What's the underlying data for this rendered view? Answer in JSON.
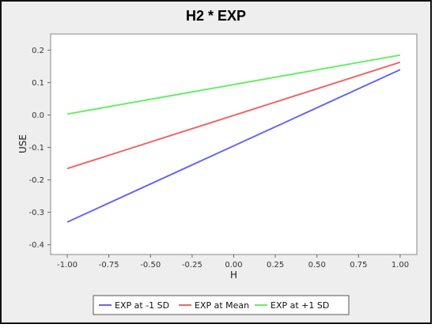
{
  "chart_data": {
    "type": "line",
    "title": "H2 * EXP",
    "xlabel": "H",
    "ylabel": "USE",
    "xlim": [
      -1.1,
      1.1
    ],
    "ylim": [
      -0.43,
      0.25
    ],
    "xticks": [
      "-1.00",
      "-0.75",
      "-0.50",
      "-0.25",
      "0.00",
      "0.25",
      "0.50",
      "0.75",
      "1.00"
    ],
    "yticks": [
      "-0.4",
      "-0.3",
      "-0.2",
      "-0.1",
      "0.0",
      "0.1",
      "0.2"
    ],
    "grid": false,
    "legend_position": "bottom",
    "series": [
      {
        "name": "EXP at -1 SD",
        "color": "#6666ee",
        "x": [
          -1.0,
          1.0
        ],
        "y": [
          -0.33,
          0.14
        ]
      },
      {
        "name": "EXP at Mean",
        "color": "#ee6666",
        "x": [
          -1.0,
          1.0
        ],
        "y": [
          -0.165,
          0.163
        ]
      },
      {
        "name": "EXP at +1 SD",
        "color": "#66ee66",
        "x": [
          -1.0,
          1.0
        ],
        "y": [
          0.003,
          0.185
        ]
      }
    ]
  }
}
